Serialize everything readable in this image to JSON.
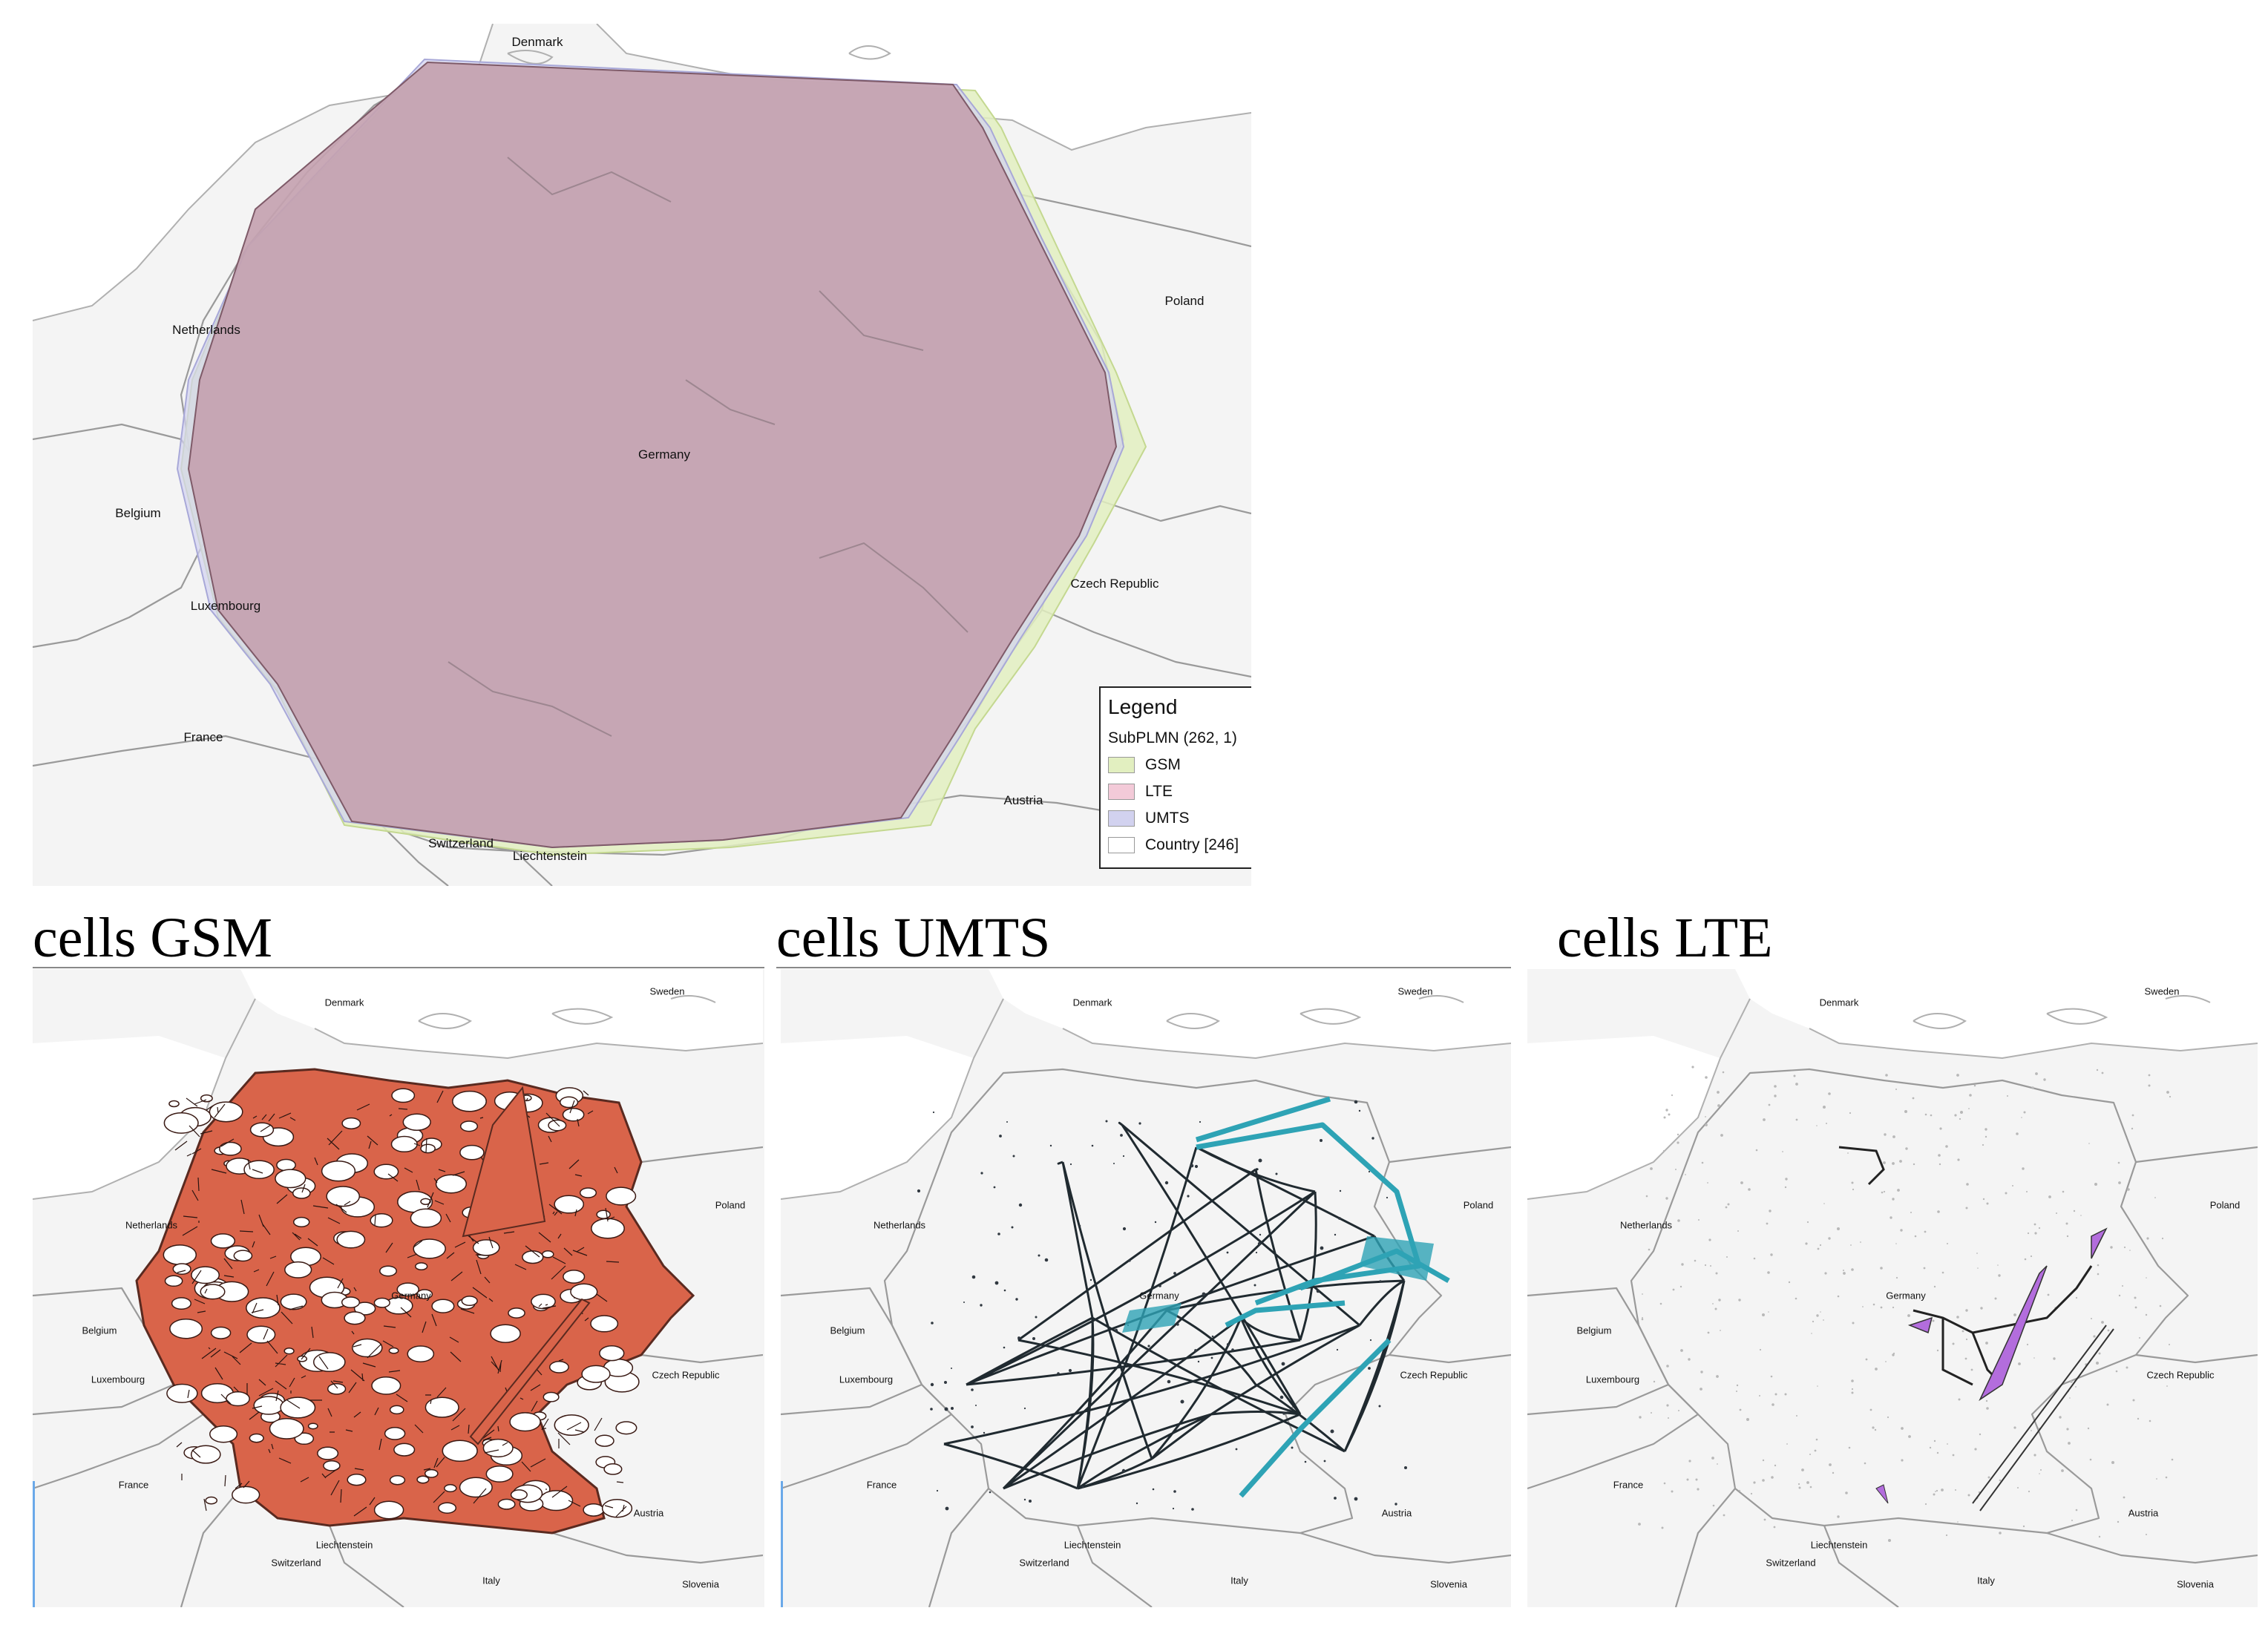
{
  "top_map": {
    "countries": {
      "denmark": "Denmark",
      "poland": "Poland",
      "netherlands": "Netherlands",
      "germany": "Germany",
      "belgium": "Belgium",
      "czech_republic": "Czech Republic",
      "luxembourg": "Luxembourg",
      "france": "France",
      "austria": "Austria",
      "switzerland": "Switzerland",
      "liechtenstein": "Liechtenstein"
    },
    "legend": {
      "title": "Legend",
      "group": "SubPLMN (262, 1)",
      "items": [
        {
          "label": "GSM",
          "color": "#e2efc0"
        },
        {
          "label": "LTE",
          "color": "#f3cad8"
        },
        {
          "label": "UMTS",
          "color": "#d2d2ef"
        },
        {
          "label": "Country [246]",
          "color": "#ffffff"
        }
      ]
    },
    "hull_color": "#b99aa6"
  },
  "panels": [
    {
      "caption": "cells GSM",
      "color": "#d9644a"
    },
    {
      "caption": "cells UMTS",
      "color": "#2ea3b5"
    },
    {
      "caption": "cells LTE",
      "color": "#b36ddd"
    }
  ],
  "small_map_labels": {
    "denmark": "Denmark",
    "sweden": "Sweden",
    "netherlands": "Netherlands",
    "poland": "Poland",
    "germany": "Germany",
    "belgium": "Belgium",
    "czech_republic": "Czech Republic",
    "luxembourg": "Luxembourg",
    "france": "France",
    "austria": "Austria",
    "liechtenstein": "Liechtenstein",
    "switzerland": "Switzerland",
    "italy": "Italy",
    "slovenia": "Slovenia"
  }
}
